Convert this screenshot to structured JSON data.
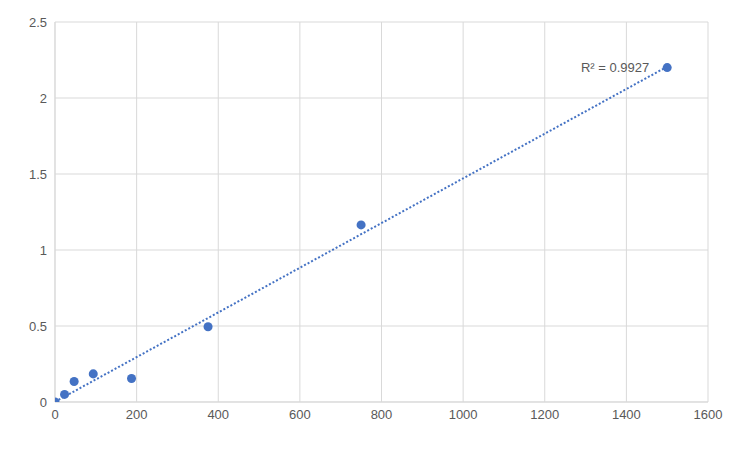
{
  "chart_data": {
    "type": "scatter",
    "x": [
      0,
      23.4,
      46.9,
      93.75,
      187.5,
      375,
      750,
      1500
    ],
    "values": [
      0,
      0.05,
      0.135,
      0.185,
      0.155,
      0.495,
      1.165,
      2.2
    ],
    "color": "#4472c4",
    "marker": "circle",
    "line_style": "dotted",
    "xlim": [
      0,
      1600
    ],
    "xticks": [
      0,
      200,
      400,
      600,
      800,
      1000,
      1200,
      1400,
      1600
    ],
    "ylim": [
      0,
      2.5
    ],
    "yticks": [
      0,
      0.5,
      1,
      1.5,
      2,
      2.5
    ],
    "grid": true,
    "annotation": "R² = 0.9927"
  }
}
